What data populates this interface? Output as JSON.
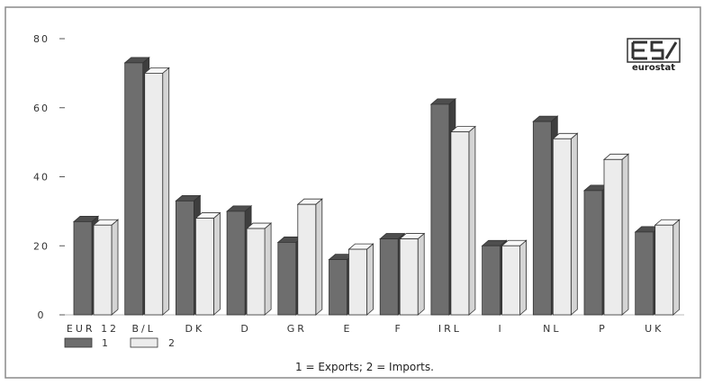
{
  "chart_data": {
    "type": "bar",
    "categories": [
      "EUR 12",
      "B/L",
      "DK",
      "D",
      "GR",
      "E",
      "F",
      "IRL",
      "I",
      "NL",
      "P",
      "UK"
    ],
    "series": [
      {
        "name": "1",
        "values": [
          27,
          73,
          33,
          30,
          21,
          16,
          22,
          61,
          20,
          56,
          36,
          24
        ],
        "color": "#6e6e6e"
      },
      {
        "name": "2",
        "values": [
          26,
          70,
          28,
          25,
          32,
          19,
          22,
          53,
          20,
          51,
          45,
          26
        ],
        "color": "#ececec"
      }
    ],
    "yticks": [
      "0",
      "20",
      "40",
      "60",
      "80"
    ],
    "ylim": [
      0,
      80
    ],
    "legend_position": "bottom-left",
    "note": "1 = Exports; 2 = Imports.",
    "grid": false
  },
  "logo": {
    "text": "eurostat",
    "icon": "eurostat-logo-icon"
  },
  "colors": {
    "border": "#8a8a8a",
    "background": "#ffffff",
    "axis": "#555555"
  }
}
